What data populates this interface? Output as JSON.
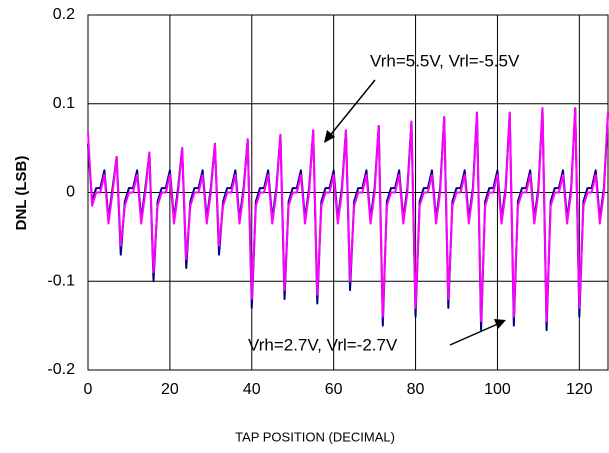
{
  "chart_data": {
    "type": "line",
    "xlabel": "TAP POSITION (DECIMAL)",
    "ylabel": "DNL (LSB)",
    "xlim": [
      0,
      127
    ],
    "xticks": [
      0,
      20,
      40,
      60,
      80,
      100,
      120
    ],
    "ylim": [
      -0.2,
      0.2
    ],
    "yticks": [
      -0.2,
      -0.1,
      0,
      0.1,
      0.2
    ],
    "grid": true,
    "x": [
      0,
      1,
      2,
      3,
      4,
      5,
      6,
      7,
      8,
      9,
      10,
      11,
      12,
      13,
      14,
      15,
      16,
      17,
      18,
      19,
      20,
      21,
      22,
      23,
      24,
      25,
      26,
      27,
      28,
      29,
      30,
      31,
      32,
      33,
      34,
      35,
      36,
      37,
      38,
      39,
      40,
      41,
      42,
      43,
      44,
      45,
      46,
      47,
      48,
      49,
      50,
      51,
      52,
      53,
      54,
      55,
      56,
      57,
      58,
      59,
      60,
      61,
      62,
      63,
      64,
      65,
      66,
      67,
      68,
      69,
      70,
      71,
      72,
      73,
      74,
      75,
      76,
      77,
      78,
      79,
      80,
      81,
      82,
      83,
      84,
      85,
      86,
      87,
      88,
      89,
      90,
      91,
      92,
      93,
      94,
      95,
      96,
      97,
      98,
      99,
      100,
      101,
      102,
      103,
      104,
      105,
      106,
      107,
      108,
      109,
      110,
      111,
      112,
      113,
      114,
      115,
      116,
      117,
      118,
      119,
      120,
      121,
      122,
      123,
      124,
      125,
      126,
      127
    ],
    "series": [
      {
        "name": "Vrh=2.7V, Vrl=-2.7V",
        "color": "#000080",
        "values": [
          0.055,
          -0.01,
          0.005,
          0.005,
          0.025,
          -0.03,
          0.005,
          0.04,
          -0.07,
          -0.01,
          0.005,
          0.005,
          0.025,
          -0.03,
          0.005,
          0.045,
          -0.1,
          -0.01,
          0.005,
          0.005,
          0.025,
          -0.03,
          0.005,
          0.05,
          -0.085,
          -0.01,
          0.005,
          0.005,
          0.025,
          -0.03,
          0.005,
          0.055,
          -0.07,
          -0.01,
          0.005,
          0.005,
          0.025,
          -0.03,
          0.005,
          0.06,
          -0.13,
          -0.01,
          0.005,
          0.005,
          0.025,
          -0.03,
          0.005,
          0.065,
          -0.12,
          -0.01,
          0.005,
          0.005,
          0.025,
          -0.03,
          0.005,
          0.07,
          -0.125,
          -0.01,
          0.005,
          0.005,
          0.025,
          -0.03,
          0.005,
          0.07,
          -0.11,
          -0.01,
          0.005,
          0.005,
          0.025,
          -0.03,
          0.005,
          0.075,
          -0.15,
          -0.01,
          0.005,
          0.005,
          0.025,
          -0.03,
          0.005,
          0.08,
          -0.14,
          -0.01,
          0.005,
          0.005,
          0.025,
          -0.03,
          0.005,
          0.085,
          -0.13,
          -0.01,
          0.005,
          0.005,
          0.025,
          -0.03,
          0.005,
          0.09,
          -0.155,
          -0.01,
          0.005,
          0.005,
          0.025,
          -0.03,
          0.005,
          0.09,
          -0.15,
          -0.01,
          0.005,
          0.005,
          0.025,
          -0.03,
          0.005,
          0.095,
          -0.155,
          -0.01,
          0.005,
          0.005,
          0.025,
          -0.03,
          0.005,
          0.095,
          -0.14,
          -0.01,
          0.005,
          0.005,
          0.025,
          -0.03,
          0.005,
          0.09
        ]
      },
      {
        "name": "Vrh=5.5V, Vrl=-5.5V",
        "color": "#ff00ff",
        "values": [
          0.068,
          -0.015,
          0,
          0,
          0.02,
          -0.035,
          0,
          0.04,
          -0.06,
          -0.015,
          0,
          0,
          0.02,
          -0.035,
          0,
          0.045,
          -0.09,
          -0.015,
          0,
          0,
          0.02,
          -0.035,
          0,
          0.05,
          -0.075,
          -0.015,
          0,
          0,
          0.02,
          -0.035,
          0,
          0.055,
          -0.06,
          -0.015,
          0,
          0,
          0.02,
          -0.035,
          0,
          0.06,
          -0.12,
          -0.015,
          0,
          0,
          0.02,
          -0.035,
          0,
          0.065,
          -0.11,
          -0.015,
          0,
          0,
          0.02,
          -0.035,
          0,
          0.07,
          -0.115,
          -0.015,
          0,
          0,
          0.02,
          -0.035,
          0,
          0.07,
          -0.1,
          -0.015,
          0,
          0,
          0.02,
          -0.035,
          0,
          0.075,
          -0.14,
          -0.015,
          0,
          0,
          0.02,
          -0.035,
          0,
          0.08,
          -0.13,
          -0.015,
          0,
          0,
          0.02,
          -0.035,
          0,
          0.085,
          -0.12,
          -0.015,
          0,
          0,
          0.02,
          -0.035,
          0,
          0.09,
          -0.145,
          -0.015,
          0,
          0,
          0.02,
          -0.035,
          0,
          0.09,
          -0.14,
          -0.015,
          0,
          0,
          0.02,
          -0.035,
          0,
          0.095,
          -0.145,
          -0.015,
          0,
          0,
          0.02,
          -0.035,
          0,
          0.095,
          -0.13,
          -0.015,
          0,
          0,
          0.02,
          -0.035,
          0,
          0.09
        ]
      }
    ]
  }
}
